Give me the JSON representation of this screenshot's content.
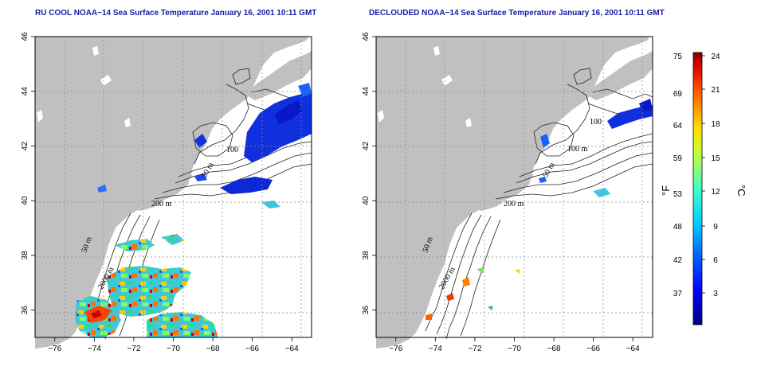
{
  "panels": [
    {
      "title": "RU COOL NOAA−14 Sea Surface Temperature January 16, 2001 10:11 GMT",
      "contour_labels": [
        "100",
        "50 m",
        "200 m",
        "50 m",
        "2000 m"
      ]
    },
    {
      "title": "DECLOUDED NOAA−14 Sea Surface Temperature January 16, 2001 10:11 GMT",
      "contour_labels": [
        "100",
        "100 m",
        "50 m",
        "200 m",
        "50 m",
        "2000 m"
      ]
    }
  ],
  "axes": {
    "lon_ticks": [
      "−76",
      "−74",
      "−72",
      "−70",
      "−68",
      "−66",
      "−64"
    ],
    "lat_ticks": [
      "36",
      "38",
      "40",
      "42",
      "44",
      "46"
    ],
    "lon_range": [
      -77,
      -63
    ],
    "lat_range": [
      35,
      46
    ]
  },
  "colorbar": {
    "fahrenheit_label": "°F",
    "celsius_label": "°C",
    "fahrenheit_ticks": [
      "37",
      "42",
      "48",
      "53",
      "59",
      "64",
      "69",
      "75"
    ],
    "celsius_ticks": [
      "3",
      "6",
      "9",
      "12",
      "15",
      "18",
      "21",
      "24"
    ],
    "colors": [
      "#00007f",
      "#0000ff",
      "#0080ff",
      "#00ffff",
      "#80ff80",
      "#ffff00",
      "#ff8000",
      "#ff0000",
      "#7f0000"
    ]
  },
  "colors": {
    "land": "#c0c0c0",
    "title": "#1a1aa6"
  }
}
